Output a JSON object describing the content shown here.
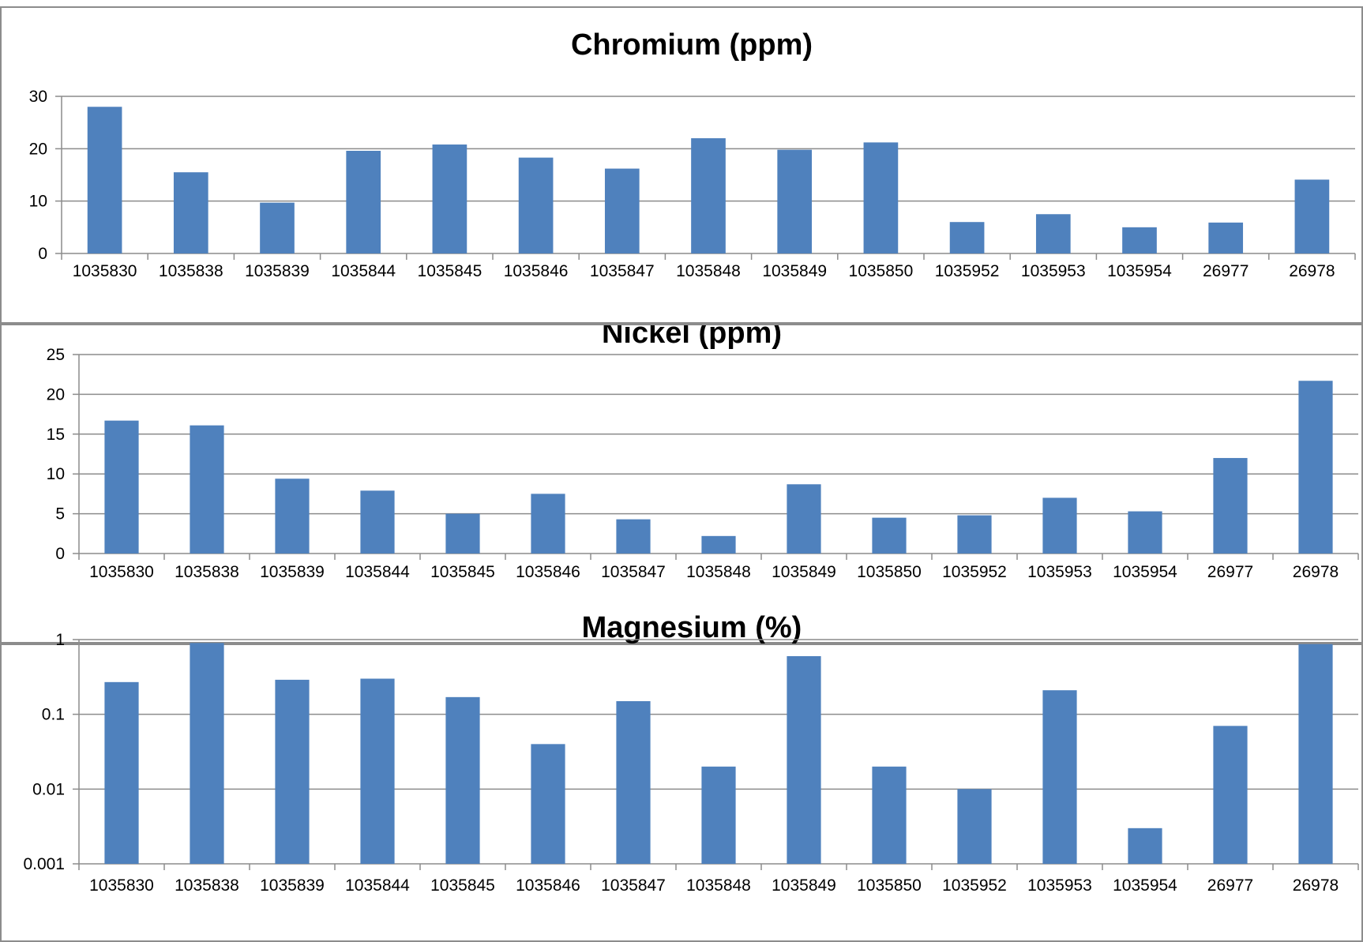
{
  "chart_data": [
    {
      "type": "bar",
      "title": "Chromium (ppm)",
      "xlabel": "",
      "ylabel": "",
      "categories": [
        "1035830",
        "1035838",
        "1035839",
        "1035844",
        "1035845",
        "1035846",
        "1035847",
        "1035848",
        "1035849",
        "1035850",
        "1035952",
        "1035953",
        "1035954",
        "26977",
        "26978"
      ],
      "values": [
        28,
        15.5,
        9.7,
        19.6,
        20.8,
        18.3,
        16.2,
        22,
        19.8,
        21.2,
        6,
        7.5,
        5,
        5.9,
        14.1
      ],
      "ylim": [
        0,
        30
      ],
      "yticks": [
        "0",
        "10",
        "20",
        "30"
      ],
      "scale": "linear",
      "grid": true,
      "color": "#4f81bd"
    },
    {
      "type": "bar",
      "title": "Nickel (ppm)",
      "xlabel": "",
      "ylabel": "",
      "categories": [
        "1035830",
        "1035838",
        "1035839",
        "1035844",
        "1035845",
        "1035846",
        "1035847",
        "1035848",
        "1035849",
        "1035850",
        "1035952",
        "1035953",
        "1035954",
        "26977",
        "26978"
      ],
      "values": [
        16.7,
        16.1,
        9.4,
        7.9,
        5,
        7.5,
        4.3,
        2.2,
        8.7,
        4.5,
        4.8,
        7,
        5.3,
        12,
        21.7
      ],
      "ylim": [
        0,
        25
      ],
      "yticks": [
        "0",
        "5",
        "10",
        "15",
        "20",
        "25"
      ],
      "scale": "linear",
      "grid": true,
      "color": "#4f81bd"
    },
    {
      "type": "bar",
      "title": "Magnesium (%)",
      "xlabel": "",
      "ylabel": "",
      "categories": [
        "1035830",
        "1035838",
        "1035839",
        "1035844",
        "1035845",
        "1035846",
        "1035847",
        "1035848",
        "1035849",
        "1035850",
        "1035952",
        "1035953",
        "1035954",
        "26977",
        "26978"
      ],
      "values": [
        0.27,
        0.9,
        0.29,
        0.3,
        0.17,
        0.04,
        0.15,
        0.02,
        0.6,
        0.02,
        0.01,
        0.21,
        0.003,
        0.07,
        0.87
      ],
      "ylim": [
        0.001,
        1
      ],
      "yticks": [
        "0.001",
        "0.01",
        "0.1",
        "1"
      ],
      "scale": "log",
      "grid": true,
      "color": "#4f81bd"
    }
  ]
}
